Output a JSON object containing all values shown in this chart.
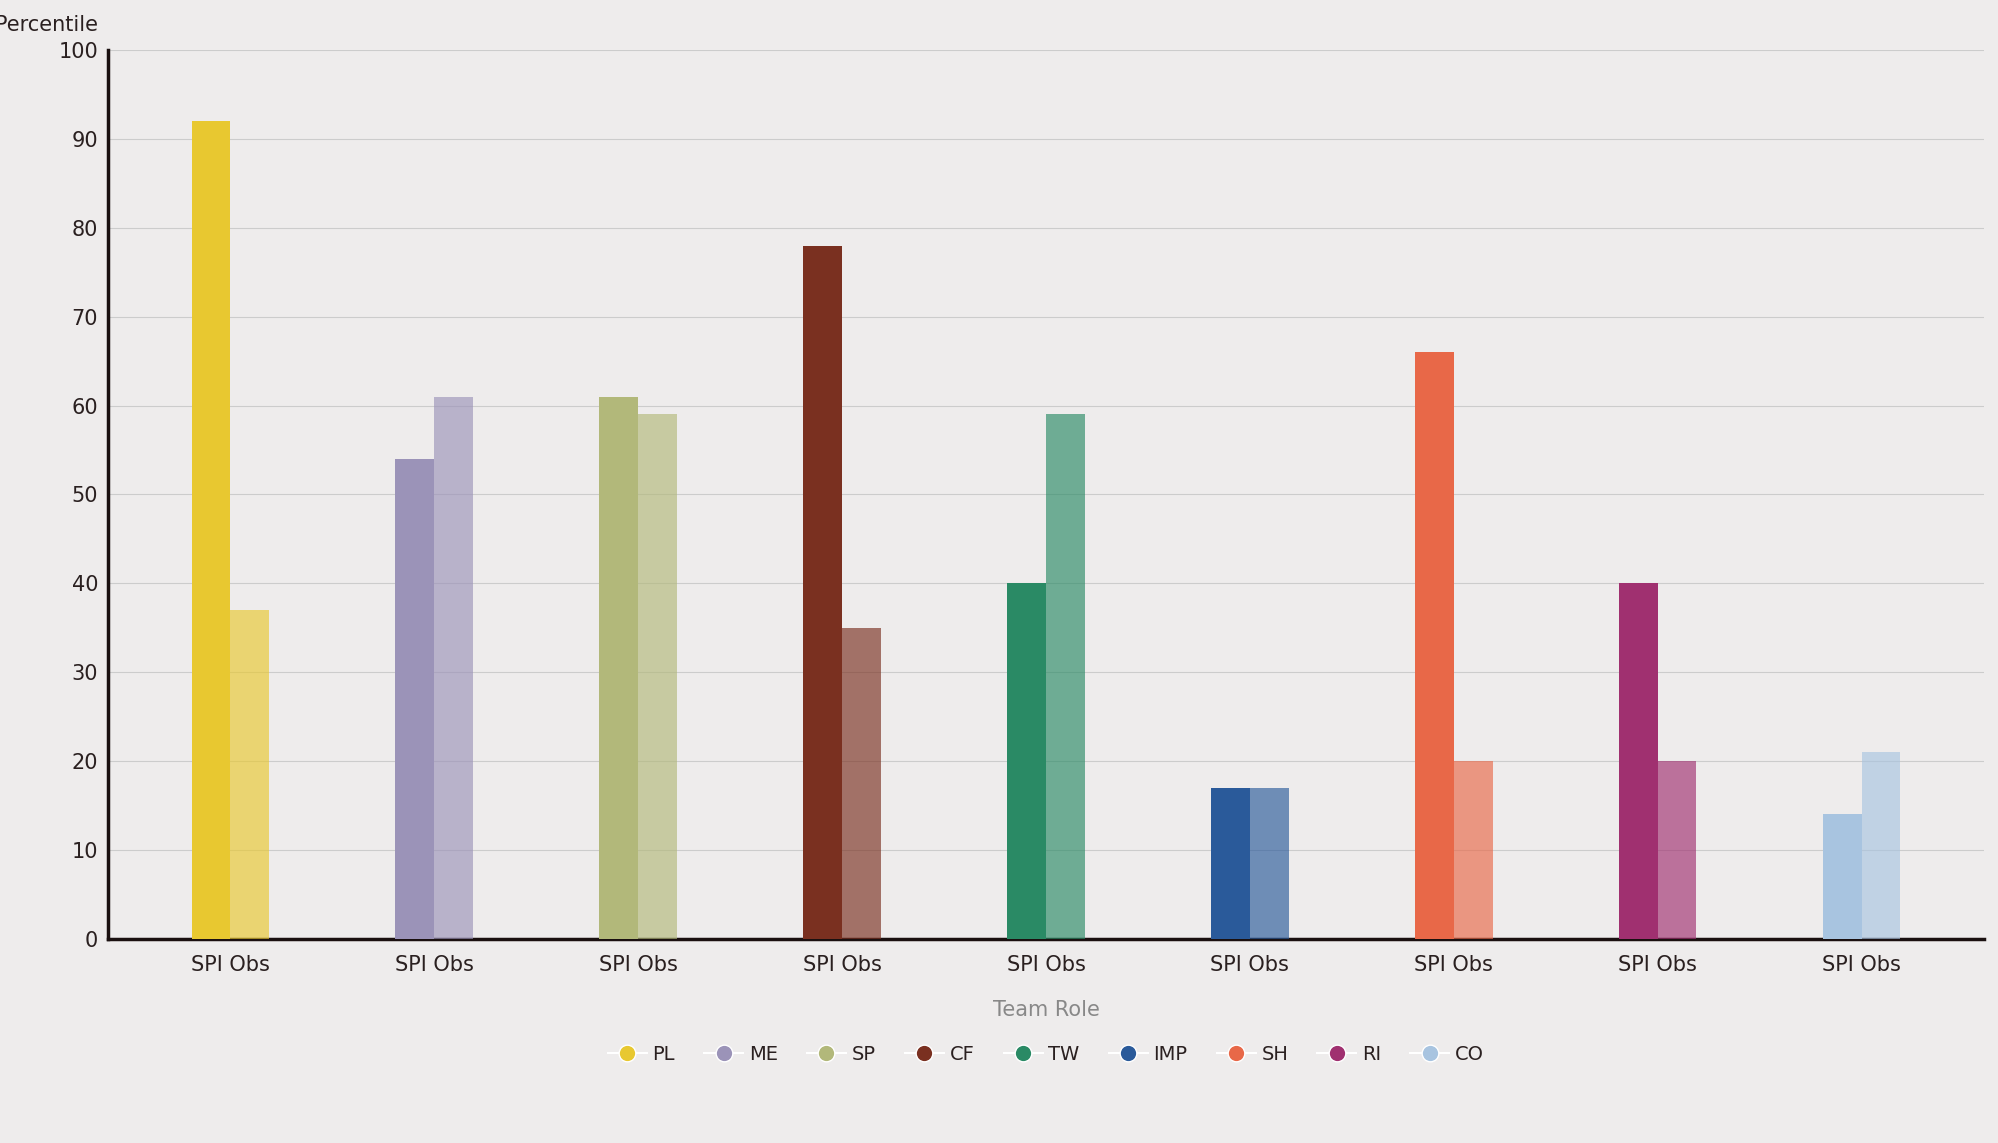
{
  "roles": [
    "PL",
    "ME",
    "SP",
    "CF",
    "TW",
    "IMP",
    "SH",
    "RI",
    "CO"
  ],
  "spi_values": [
    92,
    54,
    61,
    78,
    40,
    17,
    66,
    40,
    14
  ],
  "obs_values": [
    37,
    61,
    59,
    35,
    59,
    17,
    20,
    20,
    21
  ],
  "colors": [
    "#E8C830",
    "#9B93B8",
    "#B2B87A",
    "#7A3020",
    "#2A8A65",
    "#2A5A9A",
    "#E86848",
    "#A03070",
    "#A8C4E0"
  ],
  "background_color": "#EEECEC",
  "plot_bg_color": "#EEECEC",
  "ylabel": "Percentile",
  "xlabel": "Team Role",
  "ylim": [
    0,
    100
  ],
  "yticks": [
    0,
    10,
    20,
    30,
    40,
    50,
    60,
    70,
    80,
    90,
    100
  ],
  "bar_width": 0.38,
  "grid_color": "#CCCCCC",
  "text_color": "#2A2020",
  "axis_label_fontsize": 15,
  "tick_fontsize": 15,
  "legend_fontsize": 14,
  "legend_marker_size": 12
}
